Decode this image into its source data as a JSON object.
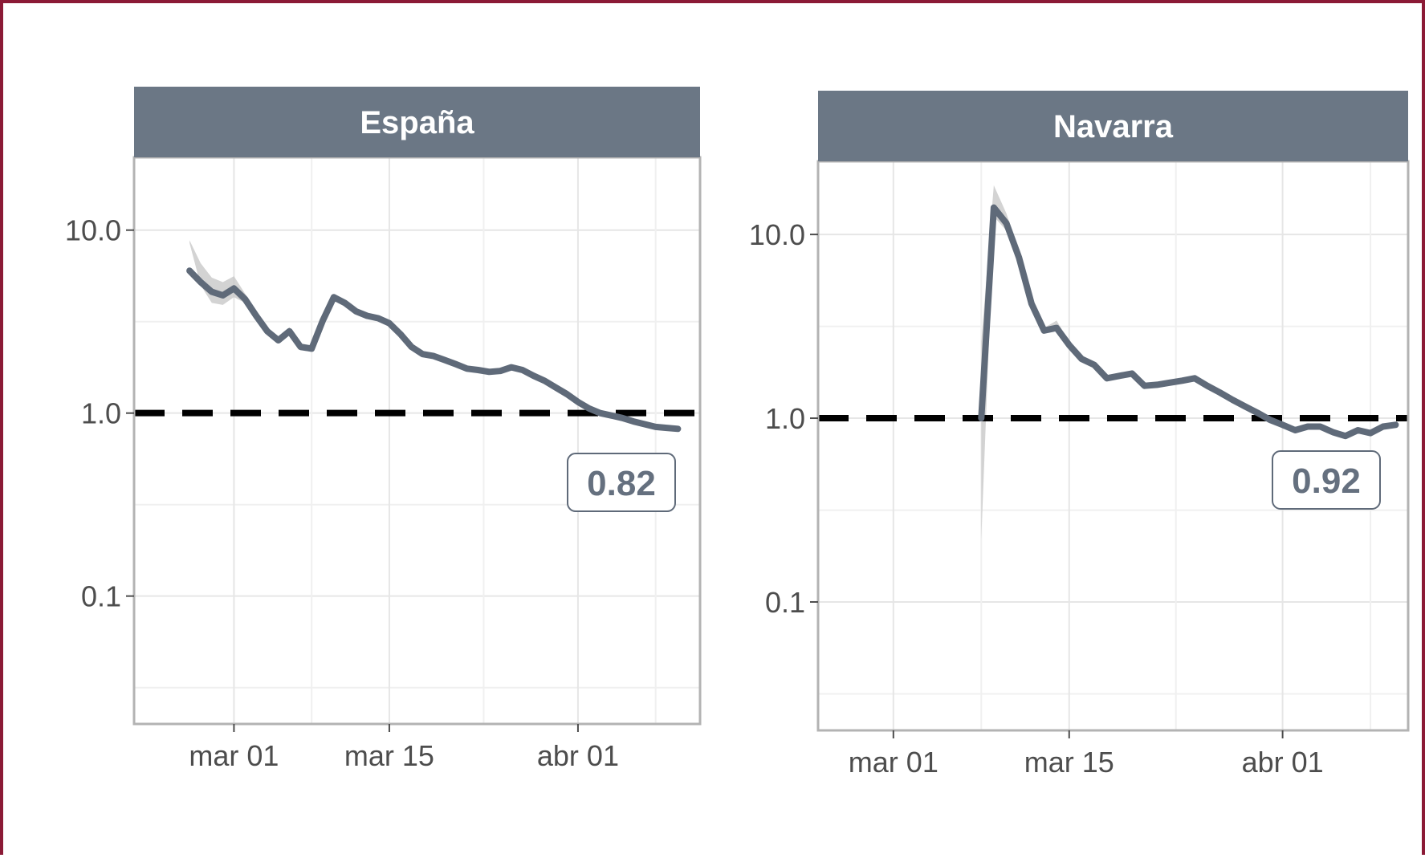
{
  "colors": {
    "frame": "#8b1a36",
    "strip": "#6b7785",
    "line": "#5f6a79",
    "ribbon": "#c8c8c8",
    "grid": "#e6e6e6",
    "panel_border": "#b3b3b3",
    "reference_line": "#000000"
  },
  "chart_data": [
    {
      "type": "line",
      "title": "España",
      "y_scale": "log",
      "ylim": [
        0.02,
        25
      ],
      "y_ticks": [
        {
          "value": 10,
          "label": "10.0"
        },
        {
          "value": 1,
          "label": "1.0"
        },
        {
          "value": 0.1,
          "label": "0.1"
        }
      ],
      "x_range": [
        "2020-02-21",
        "2020-04-12"
      ],
      "x_ticks": [
        {
          "date": "2020-03-01",
          "label": "mar 01"
        },
        {
          "date": "2020-03-15",
          "label": "mar 15"
        },
        {
          "date": "2020-04-01",
          "label": "abr 01"
        }
      ],
      "reference_line": 1.0,
      "last_value_label": "0.82",
      "series": [
        {
          "x": [
            "2020-02-26",
            "2020-02-27",
            "2020-02-28",
            "2020-02-29",
            "2020-03-01",
            "2020-03-02",
            "2020-03-03",
            "2020-03-04",
            "2020-03-05",
            "2020-03-06",
            "2020-03-07",
            "2020-03-08",
            "2020-03-09",
            "2020-03-10",
            "2020-03-11",
            "2020-03-12",
            "2020-03-13",
            "2020-03-14",
            "2020-03-15",
            "2020-03-16",
            "2020-03-17",
            "2020-03-18",
            "2020-03-19",
            "2020-03-20",
            "2020-03-21",
            "2020-03-22",
            "2020-03-23",
            "2020-03-24",
            "2020-03-25",
            "2020-03-26",
            "2020-03-27",
            "2020-03-28",
            "2020-03-29",
            "2020-03-30",
            "2020-03-31",
            "2020-04-01",
            "2020-04-02",
            "2020-04-03",
            "2020-04-04",
            "2020-04-05",
            "2020-04-06",
            "2020-04-07",
            "2020-04-08",
            "2020-04-09",
            "2020-04-10"
          ],
          "y": [
            6.0,
            5.2,
            4.6,
            4.4,
            4.8,
            4.2,
            3.4,
            2.8,
            2.5,
            2.8,
            2.3,
            2.25,
            3.2,
            4.3,
            4.0,
            3.6,
            3.4,
            3.3,
            3.1,
            2.7,
            2.3,
            2.1,
            2.05,
            1.95,
            1.85,
            1.75,
            1.72,
            1.68,
            1.7,
            1.78,
            1.72,
            1.6,
            1.5,
            1.38,
            1.27,
            1.15,
            1.06,
            1.0,
            0.97,
            0.94,
            0.9,
            0.87,
            0.84,
            0.83,
            0.82
          ],
          "lower": [
            8.5,
            5.0,
            4.0,
            3.9,
            4.3,
            4.0,
            3.2,
            2.7,
            2.4,
            2.7,
            2.2,
            2.2,
            3.1,
            4.2,
            3.9,
            3.5,
            3.3,
            3.2,
            3.0,
            2.6,
            2.25,
            2.05,
            2.0,
            1.9,
            1.8,
            1.72,
            1.68,
            1.65,
            1.67,
            1.75,
            1.69,
            1.57,
            1.47,
            1.35,
            1.25,
            1.13,
            1.04,
            0.98,
            0.95,
            0.92,
            0.88,
            0.85,
            0.82,
            0.81,
            0.8
          ],
          "upper": [
            8.8,
            6.6,
            5.5,
            5.2,
            5.6,
            4.5,
            3.6,
            2.95,
            2.6,
            2.95,
            2.4,
            2.35,
            3.3,
            4.45,
            4.1,
            3.7,
            3.5,
            3.4,
            3.2,
            2.8,
            2.35,
            2.15,
            2.1,
            2.0,
            1.9,
            1.78,
            1.76,
            1.71,
            1.73,
            1.81,
            1.75,
            1.63,
            1.53,
            1.41,
            1.29,
            1.17,
            1.08,
            1.02,
            0.99,
            0.96,
            0.92,
            0.89,
            0.86,
            0.85,
            0.84
          ]
        }
      ]
    },
    {
      "type": "line",
      "title": "Navarra",
      "y_scale": "log",
      "ylim": [
        0.02,
        25
      ],
      "y_ticks": [
        {
          "value": 10,
          "label": "10.0"
        },
        {
          "value": 1,
          "label": "1.0"
        },
        {
          "value": 0.1,
          "label": "0.1"
        }
      ],
      "x_range": [
        "2020-02-24",
        "2020-04-11"
      ],
      "x_ticks": [
        {
          "date": "2020-03-01",
          "label": "mar 01"
        },
        {
          "date": "2020-03-15",
          "label": "mar 15"
        },
        {
          "date": "2020-04-01",
          "label": "abr 01"
        }
      ],
      "reference_line": 1.0,
      "last_value_label": "0.92",
      "series": [
        {
          "x": [
            "2020-03-08",
            "2020-03-09",
            "2020-03-10",
            "2020-03-11",
            "2020-03-12",
            "2020-03-13",
            "2020-03-14",
            "2020-03-15",
            "2020-03-16",
            "2020-03-17",
            "2020-03-18",
            "2020-03-19",
            "2020-03-20",
            "2020-03-21",
            "2020-03-22",
            "2020-03-23",
            "2020-03-24",
            "2020-03-25",
            "2020-03-26",
            "2020-03-27",
            "2020-03-28",
            "2020-03-29",
            "2020-03-30",
            "2020-03-31",
            "2020-04-01",
            "2020-04-02",
            "2020-04-03",
            "2020-04-04",
            "2020-04-05",
            "2020-04-06",
            "2020-04-07",
            "2020-04-08",
            "2020-04-09",
            "2020-04-10"
          ],
          "y": [
            1.0,
            14.0,
            11.5,
            7.5,
            4.2,
            3.0,
            3.1,
            2.5,
            2.1,
            1.95,
            1.65,
            1.7,
            1.75,
            1.5,
            1.52,
            1.56,
            1.6,
            1.65,
            1.5,
            1.38,
            1.26,
            1.16,
            1.07,
            0.98,
            0.92,
            0.86,
            0.9,
            0.9,
            0.84,
            0.8,
            0.86,
            0.83,
            0.9,
            0.92
          ],
          "lower": [
            0.22,
            12.5,
            10.5,
            7.0,
            4.0,
            2.9,
            3.0,
            2.45,
            2.05,
            1.9,
            1.62,
            1.67,
            1.72,
            1.47,
            1.49,
            1.53,
            1.57,
            1.62,
            1.47,
            1.35,
            1.23,
            1.13,
            1.04,
            0.96,
            0.9,
            0.84,
            0.88,
            0.88,
            0.82,
            0.78,
            0.84,
            0.81,
            0.88,
            0.9
          ],
          "upper": [
            2.6,
            18.5,
            13.0,
            8.2,
            4.5,
            3.1,
            3.4,
            2.6,
            2.15,
            2.0,
            1.7,
            1.75,
            1.8,
            1.53,
            1.55,
            1.59,
            1.63,
            1.68,
            1.53,
            1.41,
            1.29,
            1.19,
            1.1,
            1.0,
            0.94,
            0.88,
            0.92,
            0.92,
            0.86,
            0.82,
            0.88,
            0.85,
            0.92,
            0.94
          ]
        }
      ]
    }
  ]
}
